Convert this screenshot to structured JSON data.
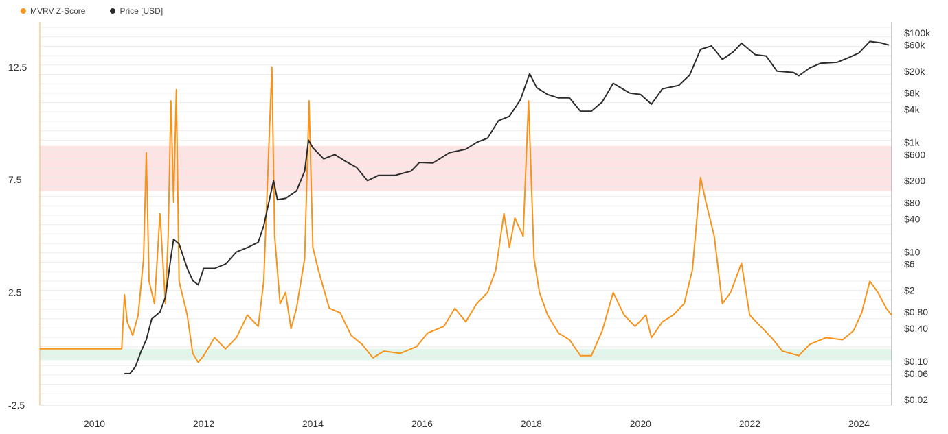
{
  "legend": [
    {
      "name": "MVRV Z-Score",
      "color": "#f7931a"
    },
    {
      "name": "Price [USD]",
      "color": "#2b2b2b"
    }
  ],
  "chart_data": {
    "type": "line",
    "title": "",
    "xlabel": "",
    "x_ticks": [
      "2010",
      "2012",
      "2014",
      "2016",
      "2018",
      "2020",
      "2022",
      "2024"
    ],
    "xlim": [
      2009.0,
      2024.6
    ],
    "y_left": {
      "label": "",
      "ticks": [
        "12.5",
        "7.5",
        "2.5",
        "-2.5"
      ],
      "ylim": [
        -2.5,
        14.5
      ]
    },
    "y_right": {
      "label": "",
      "scale": "log",
      "ticks": [
        {
          "label": "$100k",
          "value": 100000
        },
        {
          "label": "$60k",
          "value": 60000
        },
        {
          "label": "$20k",
          "value": 20000
        },
        {
          "label": "$8k",
          "value": 8000
        },
        {
          "label": "$4k",
          "value": 4000
        },
        {
          "label": "$1k",
          "value": 1000
        },
        {
          "label": "$600",
          "value": 600
        },
        {
          "label": "$200",
          "value": 200
        },
        {
          "label": "$80",
          "value": 80
        },
        {
          "label": "$40",
          "value": 40
        },
        {
          "label": "$10",
          "value": 10
        },
        {
          "label": "$6",
          "value": 6
        },
        {
          "label": "$2",
          "value": 2
        },
        {
          "label": "$0.80",
          "value": 0.8
        },
        {
          "label": "$0.40",
          "value": 0.4
        },
        {
          "label": "$0.10",
          "value": 0.1
        },
        {
          "label": "$0.06",
          "value": 0.06
        },
        {
          "label": "$0.02",
          "value": 0.02
        }
      ]
    },
    "bands": [
      {
        "zone": "overvalued",
        "from": 7.0,
        "to": 9.0,
        "color": "#fde3e3"
      },
      {
        "zone": "undervalued",
        "from": -0.5,
        "to": 0.0,
        "color": "#e2f5ea"
      }
    ],
    "series": [
      {
        "name": "MVRV Z-Score",
        "axis": "left",
        "color": "#f7931a",
        "points": [
          [
            2009.0,
            0.0
          ],
          [
            2010.5,
            0.0
          ],
          [
            2010.55,
            2.4
          ],
          [
            2010.6,
            1.2
          ],
          [
            2010.7,
            0.6
          ],
          [
            2010.8,
            1.5
          ],
          [
            2010.9,
            4.0
          ],
          [
            2010.95,
            8.7
          ],
          [
            2011.0,
            3.0
          ],
          [
            2011.1,
            2.0
          ],
          [
            2011.2,
            6.0
          ],
          [
            2011.3,
            2.0
          ],
          [
            2011.35,
            5.0
          ],
          [
            2011.4,
            11.0
          ],
          [
            2011.45,
            6.5
          ],
          [
            2011.5,
            11.5
          ],
          [
            2011.55,
            3.0
          ],
          [
            2011.7,
            1.5
          ],
          [
            2011.8,
            -0.2
          ],
          [
            2011.9,
            -0.6
          ],
          [
            2012.0,
            -0.3
          ],
          [
            2012.2,
            0.5
          ],
          [
            2012.4,
            0.0
          ],
          [
            2012.6,
            0.5
          ],
          [
            2012.8,
            1.5
          ],
          [
            2013.0,
            1.0
          ],
          [
            2013.1,
            3.0
          ],
          [
            2013.25,
            12.5
          ],
          [
            2013.3,
            5.0
          ],
          [
            2013.4,
            2.0
          ],
          [
            2013.5,
            2.5
          ],
          [
            2013.6,
            0.9
          ],
          [
            2013.7,
            1.8
          ],
          [
            2013.85,
            4.0
          ],
          [
            2013.93,
            11.0
          ],
          [
            2014.0,
            4.5
          ],
          [
            2014.1,
            3.5
          ],
          [
            2014.3,
            1.8
          ],
          [
            2014.5,
            1.6
          ],
          [
            2014.7,
            0.6
          ],
          [
            2014.9,
            0.2
          ],
          [
            2015.1,
            -0.4
          ],
          [
            2015.3,
            -0.1
          ],
          [
            2015.6,
            -0.2
          ],
          [
            2015.9,
            0.1
          ],
          [
            2016.1,
            0.7
          ],
          [
            2016.4,
            1.0
          ],
          [
            2016.6,
            1.8
          ],
          [
            2016.8,
            1.2
          ],
          [
            2017.0,
            2.0
          ],
          [
            2017.2,
            2.5
          ],
          [
            2017.35,
            3.5
          ],
          [
            2017.5,
            6.0
          ],
          [
            2017.6,
            4.5
          ],
          [
            2017.7,
            5.8
          ],
          [
            2017.85,
            5.0
          ],
          [
            2017.95,
            11.0
          ],
          [
            2018.05,
            4.0
          ],
          [
            2018.15,
            2.5
          ],
          [
            2018.3,
            1.5
          ],
          [
            2018.5,
            0.7
          ],
          [
            2018.7,
            0.4
          ],
          [
            2018.9,
            -0.3
          ],
          [
            2019.1,
            -0.3
          ],
          [
            2019.3,
            0.8
          ],
          [
            2019.5,
            2.5
          ],
          [
            2019.7,
            1.5
          ],
          [
            2019.9,
            1.0
          ],
          [
            2020.1,
            1.5
          ],
          [
            2020.2,
            0.5
          ],
          [
            2020.4,
            1.2
          ],
          [
            2020.6,
            1.5
          ],
          [
            2020.8,
            2.0
          ],
          [
            2020.95,
            3.5
          ],
          [
            2021.1,
            7.6
          ],
          [
            2021.2,
            6.5
          ],
          [
            2021.35,
            5.0
          ],
          [
            2021.5,
            2.0
          ],
          [
            2021.65,
            2.5
          ],
          [
            2021.85,
            3.8
          ],
          [
            2022.0,
            1.5
          ],
          [
            2022.2,
            1.0
          ],
          [
            2022.4,
            0.5
          ],
          [
            2022.6,
            -0.1
          ],
          [
            2022.9,
            -0.3
          ],
          [
            2023.1,
            0.2
          ],
          [
            2023.4,
            0.5
          ],
          [
            2023.7,
            0.4
          ],
          [
            2023.9,
            0.8
          ],
          [
            2024.05,
            1.6
          ],
          [
            2024.2,
            3.0
          ],
          [
            2024.35,
            2.5
          ],
          [
            2024.5,
            1.8
          ],
          [
            2024.6,
            1.5
          ]
        ]
      },
      {
        "name": "Price [USD]",
        "axis": "right",
        "color": "#2b2b2b",
        "points": [
          [
            2010.55,
            0.06
          ],
          [
            2010.65,
            0.06
          ],
          [
            2010.75,
            0.08
          ],
          [
            2010.85,
            0.15
          ],
          [
            2010.95,
            0.25
          ],
          [
            2011.05,
            0.6
          ],
          [
            2011.2,
            0.8
          ],
          [
            2011.3,
            1.5
          ],
          [
            2011.4,
            8.0
          ],
          [
            2011.45,
            17.0
          ],
          [
            2011.55,
            14.0
          ],
          [
            2011.7,
            5.0
          ],
          [
            2011.8,
            3.0
          ],
          [
            2011.9,
            2.5
          ],
          [
            2012.0,
            5.0
          ],
          [
            2012.2,
            5.0
          ],
          [
            2012.4,
            6.0
          ],
          [
            2012.6,
            10.0
          ],
          [
            2012.8,
            12.0
          ],
          [
            2013.0,
            15.0
          ],
          [
            2013.1,
            30.0
          ],
          [
            2013.28,
            200.0
          ],
          [
            2013.35,
            90.0
          ],
          [
            2013.5,
            95.0
          ],
          [
            2013.7,
            130.0
          ],
          [
            2013.85,
            300.0
          ],
          [
            2013.92,
            1100.0
          ],
          [
            2014.0,
            800.0
          ],
          [
            2014.2,
            500.0
          ],
          [
            2014.4,
            600.0
          ],
          [
            2014.6,
            450.0
          ],
          [
            2014.8,
            350.0
          ],
          [
            2015.0,
            200.0
          ],
          [
            2015.2,
            250.0
          ],
          [
            2015.5,
            250.0
          ],
          [
            2015.8,
            300.0
          ],
          [
            2015.95,
            430.0
          ],
          [
            2016.2,
            420.0
          ],
          [
            2016.5,
            650.0
          ],
          [
            2016.8,
            750.0
          ],
          [
            2017.0,
            1000.0
          ],
          [
            2017.2,
            1200.0
          ],
          [
            2017.4,
            2500.0
          ],
          [
            2017.6,
            3000.0
          ],
          [
            2017.8,
            6000.0
          ],
          [
            2017.97,
            18000.0
          ],
          [
            2018.1,
            10000.0
          ],
          [
            2018.3,
            7500.0
          ],
          [
            2018.5,
            6500.0
          ],
          [
            2018.7,
            6500.0
          ],
          [
            2018.9,
            3700.0
          ],
          [
            2019.1,
            3700.0
          ],
          [
            2019.3,
            5500.0
          ],
          [
            2019.5,
            12000.0
          ],
          [
            2019.8,
            8000.0
          ],
          [
            2020.0,
            7500.0
          ],
          [
            2020.2,
            5000.0
          ],
          [
            2020.4,
            9500.0
          ],
          [
            2020.7,
            11000.0
          ],
          [
            2020.9,
            17000.0
          ],
          [
            2021.1,
            50000.0
          ],
          [
            2021.3,
            58000.0
          ],
          [
            2021.5,
            33000.0
          ],
          [
            2021.7,
            45000.0
          ],
          [
            2021.85,
            65000.0
          ],
          [
            2022.1,
            40000.0
          ],
          [
            2022.3,
            38000.0
          ],
          [
            2022.5,
            20000.0
          ],
          [
            2022.8,
            19000.0
          ],
          [
            2022.9,
            16500.0
          ],
          [
            2023.1,
            23000.0
          ],
          [
            2023.3,
            28000.0
          ],
          [
            2023.6,
            29000.0
          ],
          [
            2023.8,
            35000.0
          ],
          [
            2024.0,
            43000.0
          ],
          [
            2024.2,
            70000.0
          ],
          [
            2024.4,
            66000.0
          ],
          [
            2024.55,
            60000.0
          ]
        ]
      }
    ]
  }
}
